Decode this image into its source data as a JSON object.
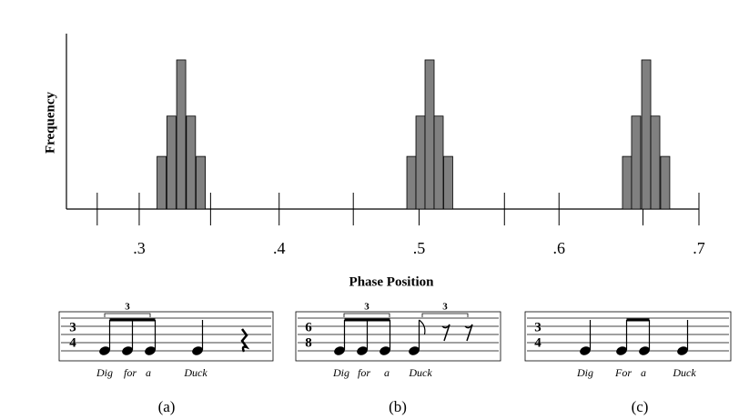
{
  "chart_data": {
    "type": "bar",
    "x_label": "Phase Position",
    "y_label": "Frequency",
    "x": [
      0.316,
      0.323,
      0.33,
      0.337,
      0.344,
      0.4945,
      0.501,
      0.5075,
      0.514,
      0.5208,
      0.6486,
      0.6551,
      0.6623,
      0.6688,
      0.6759
    ],
    "values": [
      3,
      5.3,
      8.5,
      5.3,
      3,
      3,
      5.3,
      8.5,
      5.3,
      3,
      3,
      5.3,
      8.5,
      5.3,
      3
    ],
    "bar_width": 0.0065,
    "color": "#808080",
    "xlim": [
      0.248,
      0.7
    ],
    "ylim": [
      0,
      10
    ],
    "xticks": [
      {
        "value": 0.3,
        "label": ".3"
      },
      {
        "value": 0.4,
        "label": ".4"
      },
      {
        "value": 0.5,
        "label": ".5"
      },
      {
        "value": 0.6,
        "label": ".6"
      },
      {
        "value": 0.7,
        "label": ".7"
      }
    ],
    "xminor_ticks": [
      0.27,
      0.351,
      0.453,
      0.561,
      0.66
    ]
  },
  "notation": [
    {
      "time_signature": [
        "3",
        "4"
      ],
      "tuplets": [
        "3"
      ],
      "lyrics": [
        "Dig",
        "for",
        "a",
        "Duck"
      ],
      "caption": "(a)"
    },
    {
      "time_signature": [
        "6",
        "8"
      ],
      "tuplets": [
        "3",
        "3"
      ],
      "lyrics": [
        "Dig",
        "for",
        "a",
        "Duck"
      ],
      "caption": "(b)"
    },
    {
      "time_signature": [
        "3",
        "4"
      ],
      "lyrics": [
        "Dig",
        "For",
        "a",
        "Duck"
      ],
      "caption": "(c)"
    }
  ]
}
